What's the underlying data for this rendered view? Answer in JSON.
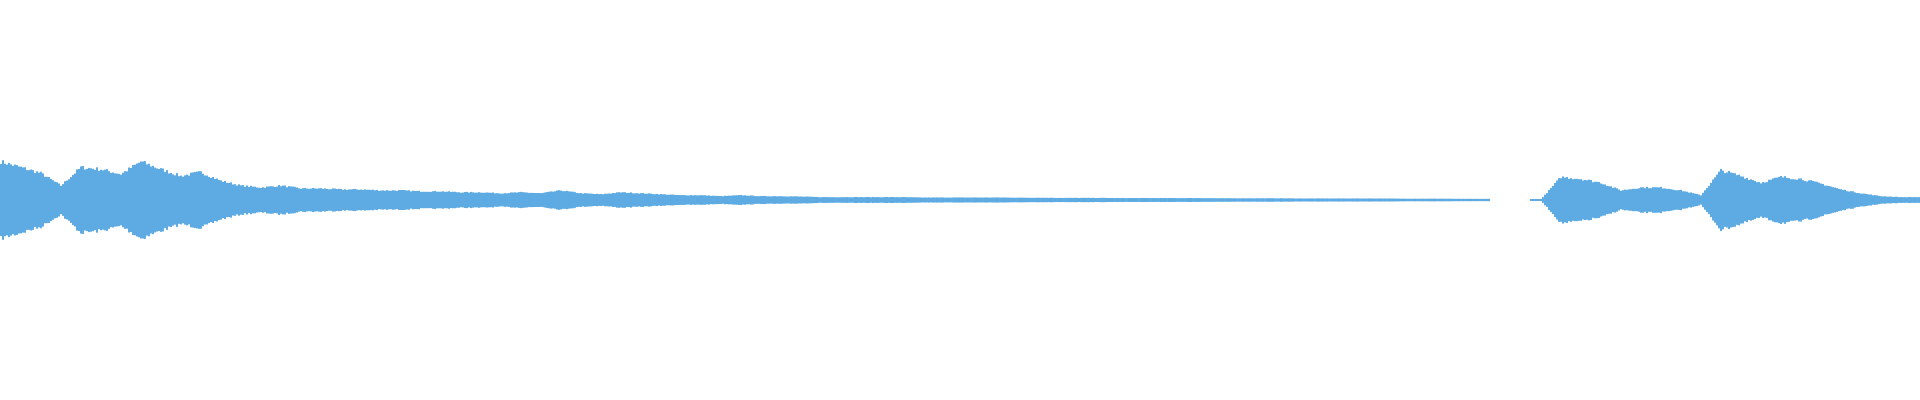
{
  "chart_data": {
    "type": "area",
    "title": "",
    "xlabel": "",
    "ylabel": "",
    "ylim": [
      -1,
      1
    ],
    "grid": false,
    "legend": "none",
    "symmetric": true,
    "color": "#5dabe2",
    "background": "#ffffff",
    "amplitude": [
      0.2,
      0.17,
      0.14,
      0.075,
      0.17,
      0.16,
      0.135,
      0.2,
      0.16,
      0.125,
      0.145,
      0.1,
      0.075,
      0.065,
      0.075,
      0.06,
      0.06,
      0.055,
      0.055,
      0.05,
      0.05,
      0.045,
      0.045,
      0.04,
      0.04,
      0.035,
      0.04,
      0.035,
      0.05,
      0.035,
      0.03,
      0.04,
      0.035,
      0.03,
      0.025,
      0.025,
      0.02,
      0.025,
      0.02,
      0.02,
      0.018,
      0.015,
      0.015,
      0.015,
      0.015,
      0.015,
      0.013,
      0.013,
      0.013,
      0.013,
      0.013,
      0.012,
      0.012,
      0.011,
      0.011,
      0.011,
      0.01,
      0.01,
      0.01,
      0.01,
      0.01,
      0.009,
      0.009,
      0.009,
      0.009,
      0.008,
      0.008,
      0.008,
      0.008,
      0.008,
      0.007,
      0.007,
      0.007,
      0.006,
      0.006,
      0.0,
      0.0,
      0.003,
      0.12,
      0.11,
      0.09,
      0.05,
      0.065,
      0.065,
      0.05,
      0.025,
      0.155,
      0.125,
      0.09,
      0.12,
      0.11,
      0.085,
      0.055,
      0.035,
      0.02,
      0.015
    ]
  }
}
